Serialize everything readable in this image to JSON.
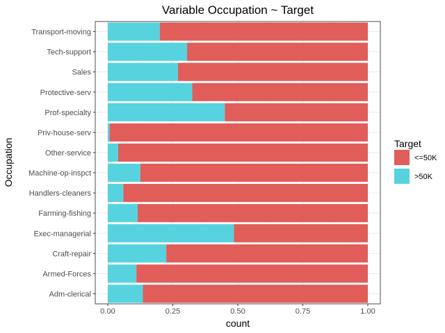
{
  "chart_data": {
    "type": "bar",
    "orientation": "horizontal",
    "stacked": true,
    "normalized": true,
    "title": "Variable Occupation ~ Target",
    "xlabel": "count",
    "ylabel": "Occupation",
    "xlim": [
      0,
      1
    ],
    "x_ticks": [
      "0.00",
      "0.25",
      "0.50",
      "0.75",
      "1.00"
    ],
    "grid": true,
    "legend_position": "right",
    "legend_title": "Target",
    "categories": [
      "Transport-moving",
      "Tech-support",
      "Sales",
      "Protective-serv",
      "Prof-specialty",
      "Priv-house-serv",
      "Other-service",
      "Machine-op-inspct",
      "Handlers-cleaners",
      "Farming-fishing",
      "Exec-managerial",
      "Craft-repair",
      "Armed-Forces",
      "Adm-clerical"
    ],
    "series": [
      {
        "name": ">50K",
        "color": "#56d3de",
        "values": [
          0.2,
          0.305,
          0.27,
          0.325,
          0.45,
          0.007,
          0.04,
          0.125,
          0.06,
          0.115,
          0.485,
          0.225,
          0.11,
          0.135
        ]
      },
      {
        "name": "<=50K",
        "color": "#e05d5a",
        "values": [
          0.8,
          0.695,
          0.73,
          0.675,
          0.55,
          0.993,
          0.96,
          0.875,
          0.94,
          0.885,
          0.515,
          0.775,
          0.89,
          0.865
        ]
      }
    ],
    "legend_order": [
      "<=50K",
      ">50K"
    ]
  }
}
